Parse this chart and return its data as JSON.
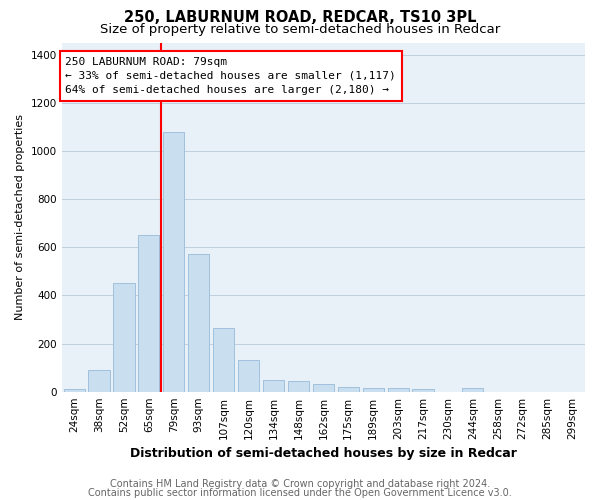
{
  "title": "250, LABURNUM ROAD, REDCAR, TS10 3PL",
  "subtitle": "Size of property relative to semi-detached houses in Redcar",
  "xlabel": "Distribution of semi-detached houses by size in Redcar",
  "ylabel": "Number of semi-detached properties",
  "categories": [
    "24sqm",
    "38sqm",
    "52sqm",
    "65sqm",
    "79sqm",
    "93sqm",
    "107sqm",
    "120sqm",
    "134sqm",
    "148sqm",
    "162sqm",
    "175sqm",
    "189sqm",
    "203sqm",
    "217sqm",
    "230sqm",
    "244sqm",
    "258sqm",
    "272sqm",
    "285sqm",
    "299sqm"
  ],
  "values": [
    10,
    90,
    450,
    650,
    1080,
    570,
    265,
    130,
    50,
    45,
    30,
    20,
    15,
    15,
    10,
    0,
    15,
    0,
    0,
    0,
    0
  ],
  "bar_color": "#c9dff0",
  "bar_edge_color": "#a0c0dc",
  "red_line_index": 4,
  "ylim": [
    0,
    1450
  ],
  "yticks": [
    0,
    200,
    400,
    600,
    800,
    1000,
    1200,
    1400
  ],
  "annotation_title": "250 LABURNUM ROAD: 79sqm",
  "annotation_line1": "← 33% of semi-detached houses are smaller (1,117)",
  "annotation_line2": "64% of semi-detached houses are larger (2,180) →",
  "footer1": "Contains HM Land Registry data © Crown copyright and database right 2024.",
  "footer2": "Contains public sector information licensed under the Open Government Licence v3.0.",
  "bg_color": "#ffffff",
  "plot_bg_color": "#e8f0f8",
  "grid_color": "#c0d0e0",
  "title_fontsize": 10.5,
  "subtitle_fontsize": 9.5,
  "xlabel_fontsize": 9,
  "ylabel_fontsize": 8,
  "tick_fontsize": 7.5,
  "footer_fontsize": 7,
  "annotation_fontsize": 8
}
